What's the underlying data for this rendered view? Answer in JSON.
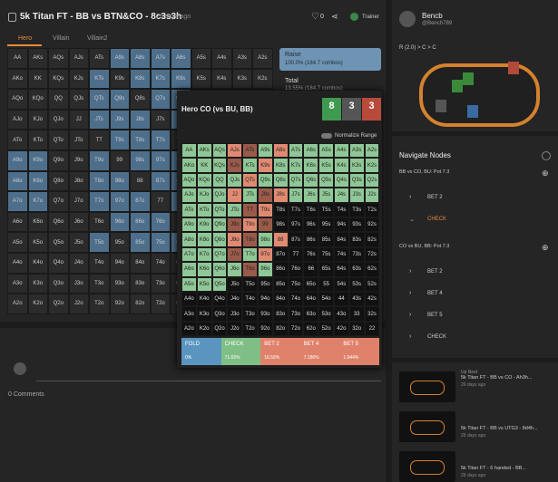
{
  "header": {
    "title": "5k Titan FT - BB vs BTN&CO - 8c3s3h",
    "time": "23 days ago",
    "likes": "0",
    "trainer": "Trainer"
  },
  "tabs": [
    "Hero",
    "Villain",
    "Villain2"
  ],
  "hands": [
    [
      "AA",
      "AKs",
      "AQs",
      "AJs",
      "ATs",
      "A9s",
      "A8s",
      "A7s",
      "A6s",
      "A5s",
      "A4s",
      "A3s",
      "A2s"
    ],
    [
      "AKo",
      "KK",
      "KQs",
      "KJs",
      "KTs",
      "K9s",
      "K8s",
      "K7s",
      "K6s",
      "K5s",
      "K4s",
      "K3s",
      "K2s"
    ],
    [
      "AQo",
      "KQo",
      "QQ",
      "QJs",
      "QTs",
      "Q9s",
      "Q8s",
      "Q7s",
      "Q6s",
      "Q5s",
      "Q4s",
      "Q3s",
      "Q2s"
    ],
    [
      "AJo",
      "KJo",
      "QJo",
      "JJ",
      "JTs",
      "J9s",
      "J8s",
      "J7s",
      "J6s",
      "J5s",
      "J4s",
      "J3s",
      "J2s"
    ],
    [
      "ATo",
      "KTo",
      "QTo",
      "JTo",
      "TT",
      "T9s",
      "T8s",
      "T7s",
      "T6s",
      "T5s",
      "T4s",
      "T3s",
      "T2s"
    ],
    [
      "A9o",
      "K9o",
      "Q9o",
      "J9o",
      "T9o",
      "99",
      "98s",
      "97s",
      "96s",
      "95s",
      "94s",
      "93s",
      "92s"
    ],
    [
      "A8o",
      "K8o",
      "Q8o",
      "J8o",
      "T8o",
      "98o",
      "88",
      "87s",
      "86s",
      "85s",
      "84s",
      "83s",
      "82s"
    ],
    [
      "A7o",
      "K7o",
      "Q7o",
      "J7o",
      "T7o",
      "97o",
      "87o",
      "77",
      "76s",
      "75s",
      "74s",
      "73s",
      "72s"
    ],
    [
      "A6o",
      "K6o",
      "Q6o",
      "J6o",
      "T6o",
      "96o",
      "86o",
      "76o",
      "66",
      "65s",
      "64s",
      "63s",
      "62s"
    ],
    [
      "A5o",
      "K5o",
      "Q5o",
      "J5o",
      "T5o",
      "95o",
      "85o",
      "75o",
      "65o",
      "55",
      "54s",
      "53s",
      "52s"
    ],
    [
      "A4o",
      "K4o",
      "Q4o",
      "J4o",
      "T4o",
      "94o",
      "84o",
      "74o",
      "64o",
      "54o",
      "44",
      "43s",
      "42s"
    ],
    [
      "A3o",
      "K3o",
      "Q3o",
      "J3o",
      "T3o",
      "93o",
      "83o",
      "73o",
      "63o",
      "53o",
      "43o",
      "33",
      "32s"
    ],
    [
      "A2o",
      "K2o",
      "Q2o",
      "J2o",
      "T2o",
      "92o",
      "82o",
      "72o",
      "62o",
      "52o",
      "42o",
      "32o",
      "22"
    ]
  ],
  "summary": {
    "raise_label": "Raise",
    "raise_value": "100.0% (184.7 combos)",
    "total_label": "Total",
    "total_value": "13.55% (184.7 combos)"
  },
  "popup": {
    "title": "Hero CO (vs BU, BB)",
    "counts": [
      "8",
      "3",
      "3"
    ],
    "normalize": "Normalize Range",
    "actions": [
      {
        "name": "FOLD",
        "pct": "0%",
        "color": "#5a95c0"
      },
      {
        "name": "CHECK",
        "pct": "71.65%",
        "color": "#7fbf86"
      },
      {
        "name": "BET 2",
        "pct": "16.59%",
        "color": "#e0826b"
      },
      {
        "name": "BET 4",
        "pct": "7.180%",
        "color": "#e0826b"
      },
      {
        "name": "BET 5",
        "pct": "1.944%",
        "color": "#e0826b"
      }
    ]
  },
  "comments": {
    "count": "0 Comments"
  },
  "profile": {
    "name": "Bencb",
    "handle": "@Bench789",
    "line": "R (2.0) > C > C"
  },
  "navigate": {
    "title": "Navigate Nodes",
    "groups": [
      {
        "label": "BB vs CO, BU: Pot 7.3",
        "options": [
          "BET 2",
          "CHECK"
        ]
      },
      {
        "label": "CO vs BU, BB: Pot 7.3",
        "options": [
          "BET 2",
          "BET 4",
          "BET 5",
          "CHECK"
        ]
      }
    ]
  },
  "up_next": {
    "label": "Up Next",
    "videos": [
      {
        "title": "5k Titan FT - BB vs CO - Ah3h...",
        "time": "26 days ago"
      },
      {
        "title": "5k Titan FT - BB vs UTG3 - 8d4h...",
        "time": "26 days ago"
      },
      {
        "title": "5k Titan FT - 6 handed - BB...",
        "time": "26 days ago"
      }
    ]
  }
}
